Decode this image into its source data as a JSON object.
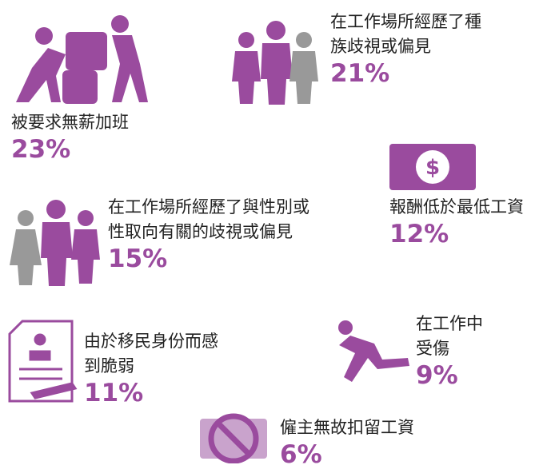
{
  "items": [
    {
      "label_lines": [
        "被要求無薪加班"
      ],
      "value": "23%"
    },
    {
      "label_lines": [
        "在工作場所經歷了種",
        "族歧視或偏見"
      ],
      "value": "21%"
    },
    {
      "label_lines": [
        "在工作場所經歷了與性別或",
        "性取向有關的歧視或偏見"
      ],
      "value": "15%"
    },
    {
      "label_lines": [
        "報酬低於最低工資"
      ],
      "value": "12%"
    },
    {
      "label_lines": [
        "由於移民身份而感",
        "到脆弱"
      ],
      "value": "11%"
    },
    {
      "label_lines": [
        "在工作中",
        "受傷"
      ],
      "value": "9%"
    },
    {
      "label_lines": [
        "僱主無故扣留工資"
      ],
      "value": "6%"
    }
  ]
}
